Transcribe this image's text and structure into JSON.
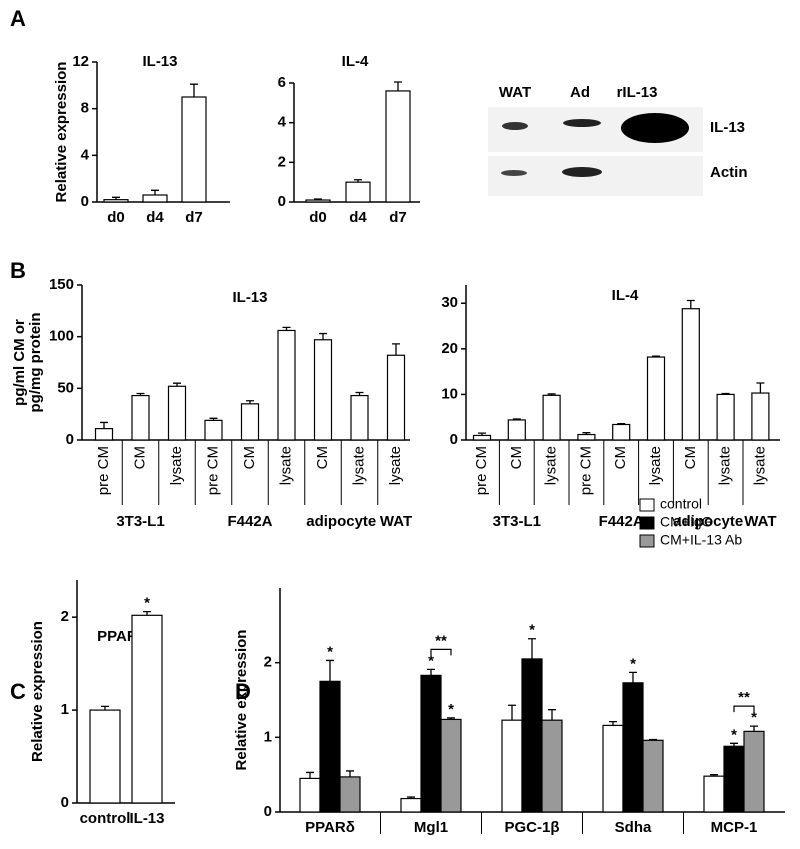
{
  "panels": [
    "A",
    "B",
    "C",
    "D"
  ],
  "blot": {
    "lanes": [
      "WAT",
      "Ad",
      "rIL-13"
    ],
    "rows": [
      "IL-13",
      "Actin"
    ]
  },
  "chart_data": [
    {
      "type": "bar",
      "title": "IL-13",
      "ylabel": [
        "Relative expression"
      ],
      "categories": [
        "d0",
        "d4",
        "d7"
      ],
      "series": [
        {
          "color": "#ffffff",
          "values": [
            0.2,
            0.6,
            9.0
          ],
          "errors": [
            0.2,
            0.4,
            1.1
          ]
        }
      ],
      "ylim": [
        0,
        12
      ],
      "yticks": [
        0,
        4,
        8,
        12
      ]
    },
    {
      "type": "bar",
      "title": "IL-4",
      "categories": [
        "d0",
        "d4",
        "d7"
      ],
      "series": [
        {
          "color": "#ffffff",
          "values": [
            0.1,
            1.0,
            5.6
          ],
          "errors": [
            0.05,
            0.12,
            0.45
          ]
        }
      ],
      "ylim": [
        0,
        6
      ],
      "yticks": [
        0,
        2,
        4,
        6
      ]
    },
    {
      "type": "bar",
      "title": "IL-13",
      "ylabel": [
        "pg/ml CM or",
        "pg/mg protein"
      ],
      "categories": [
        "pre CM",
        "CM",
        "lysate",
        "pre CM",
        "CM",
        "lysate",
        "CM",
        "lysate",
        "lysate"
      ],
      "groups": [
        {
          "label": "3T3-L1",
          "span": 3
        },
        {
          "label": "F442A",
          "span": 3
        },
        {
          "label": "adipocyte",
          "span": 2
        },
        {
          "label": "WAT",
          "span": 1
        }
      ],
      "series": [
        {
          "color": "#ffffff",
          "values": [
            11,
            43,
            52,
            19,
            35,
            106,
            97,
            43,
            82
          ],
          "errors": [
            6,
            2,
            3,
            2,
            3,
            3,
            6,
            3,
            11
          ]
        }
      ],
      "ylim": [
        0,
        150
      ],
      "yticks": [
        0,
        50,
        100,
        150
      ]
    },
    {
      "type": "bar",
      "title": "IL-4",
      "categories": [
        "pre CM",
        "CM",
        "lysate",
        "pre CM",
        "CM",
        "lysate",
        "CM",
        "lysate",
        "lysate"
      ],
      "groups": [
        {
          "label": "3T3-L1",
          "span": 3
        },
        {
          "label": "F442A",
          "span": 3
        },
        {
          "label": "adipocyte",
          "span": 2
        },
        {
          "label": "WAT",
          "span": 1
        }
      ],
      "series": [
        {
          "color": "#ffffff",
          "values": [
            1.0,
            4.4,
            9.8,
            1.2,
            3.4,
            18.2,
            28.8,
            10.0,
            10.3
          ],
          "errors": [
            0.5,
            0.2,
            0.3,
            0.4,
            0.2,
            0.2,
            1.8,
            0.2,
            2.2
          ]
        }
      ],
      "ylim": [
        0,
        34
      ],
      "yticks": [
        0,
        10,
        20,
        30
      ]
    },
    {
      "type": "bar",
      "title": "PPARδ",
      "ylabel": [
        "Relative expression"
      ],
      "categories": [
        "control",
        "IL-13"
      ],
      "series": [
        {
          "color": "#ffffff",
          "values": [
            1.0,
            2.02
          ],
          "errors": [
            0.04,
            0.04
          ],
          "significance": [
            null,
            "*"
          ]
        }
      ],
      "ylim": [
        0,
        2.4
      ],
      "yticks": [
        0,
        1,
        2
      ]
    },
    {
      "type": "bar",
      "ylabel": [
        "Relative expression"
      ],
      "categories": [
        "PPARδ",
        "Mgl1",
        "PGC-1β",
        "Sdha",
        "MCP-1"
      ],
      "series": [
        {
          "name": "control",
          "color": "#ffffff",
          "values": [
            0.45,
            0.18,
            1.23,
            1.16,
            0.48
          ],
          "errors": [
            0.08,
            0.02,
            0.2,
            0.05,
            0.02
          ],
          "significance": [
            null,
            null,
            null,
            null,
            null
          ]
        },
        {
          "name": "CM+IgG",
          "color": "#000000",
          "values": [
            1.75,
            1.83,
            2.05,
            1.73,
            0.88
          ],
          "errors": [
            0.28,
            0.08,
            0.27,
            0.14,
            0.04
          ],
          "significance": [
            "*",
            "*",
            "*",
            "*",
            "*"
          ]
        },
        {
          "name": "CM+IL-13 Ab",
          "color": "#999999",
          "values": [
            0.47,
            1.24,
            1.23,
            0.96,
            1.08
          ],
          "errors": [
            0.08,
            0.02,
            0.14,
            0.01,
            0.07
          ],
          "significance": [
            null,
            "*",
            null,
            null,
            "*"
          ]
        }
      ],
      "brackets": [
        {
          "category": 1,
          "label": "**"
        },
        {
          "category": 4,
          "label": "**"
        }
      ],
      "legend": "top-right",
      "ylim": [
        0,
        3
      ],
      "yticks": [
        0,
        1,
        2
      ]
    }
  ]
}
